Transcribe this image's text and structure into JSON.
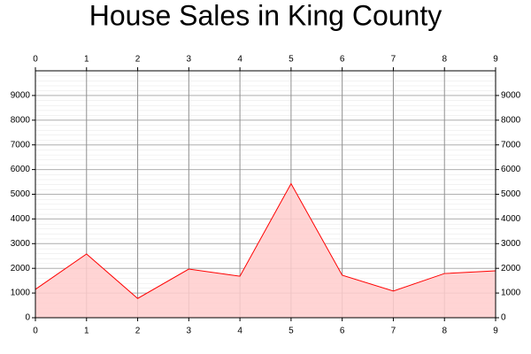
{
  "chart_data": {
    "type": "area",
    "title": "House Sales in King County",
    "x": [
      0,
      1,
      2,
      3,
      4,
      5,
      6,
      7,
      8,
      9
    ],
    "values": [
      1150,
      2580,
      780,
      1970,
      1680,
      5430,
      1720,
      1080,
      1790,
      1900
    ],
    "color": "#ff0000",
    "fill": "#ffcccc",
    "xlim": [
      0,
      9
    ],
    "xticks": [
      0,
      1,
      2,
      3,
      4,
      5,
      6,
      7,
      8,
      9
    ],
    "ylim": [
      0,
      10000
    ],
    "yticks": [
      0,
      1000,
      2000,
      3000,
      4000,
      5000,
      6000,
      7000,
      8000,
      9000
    ],
    "grid": true
  }
}
